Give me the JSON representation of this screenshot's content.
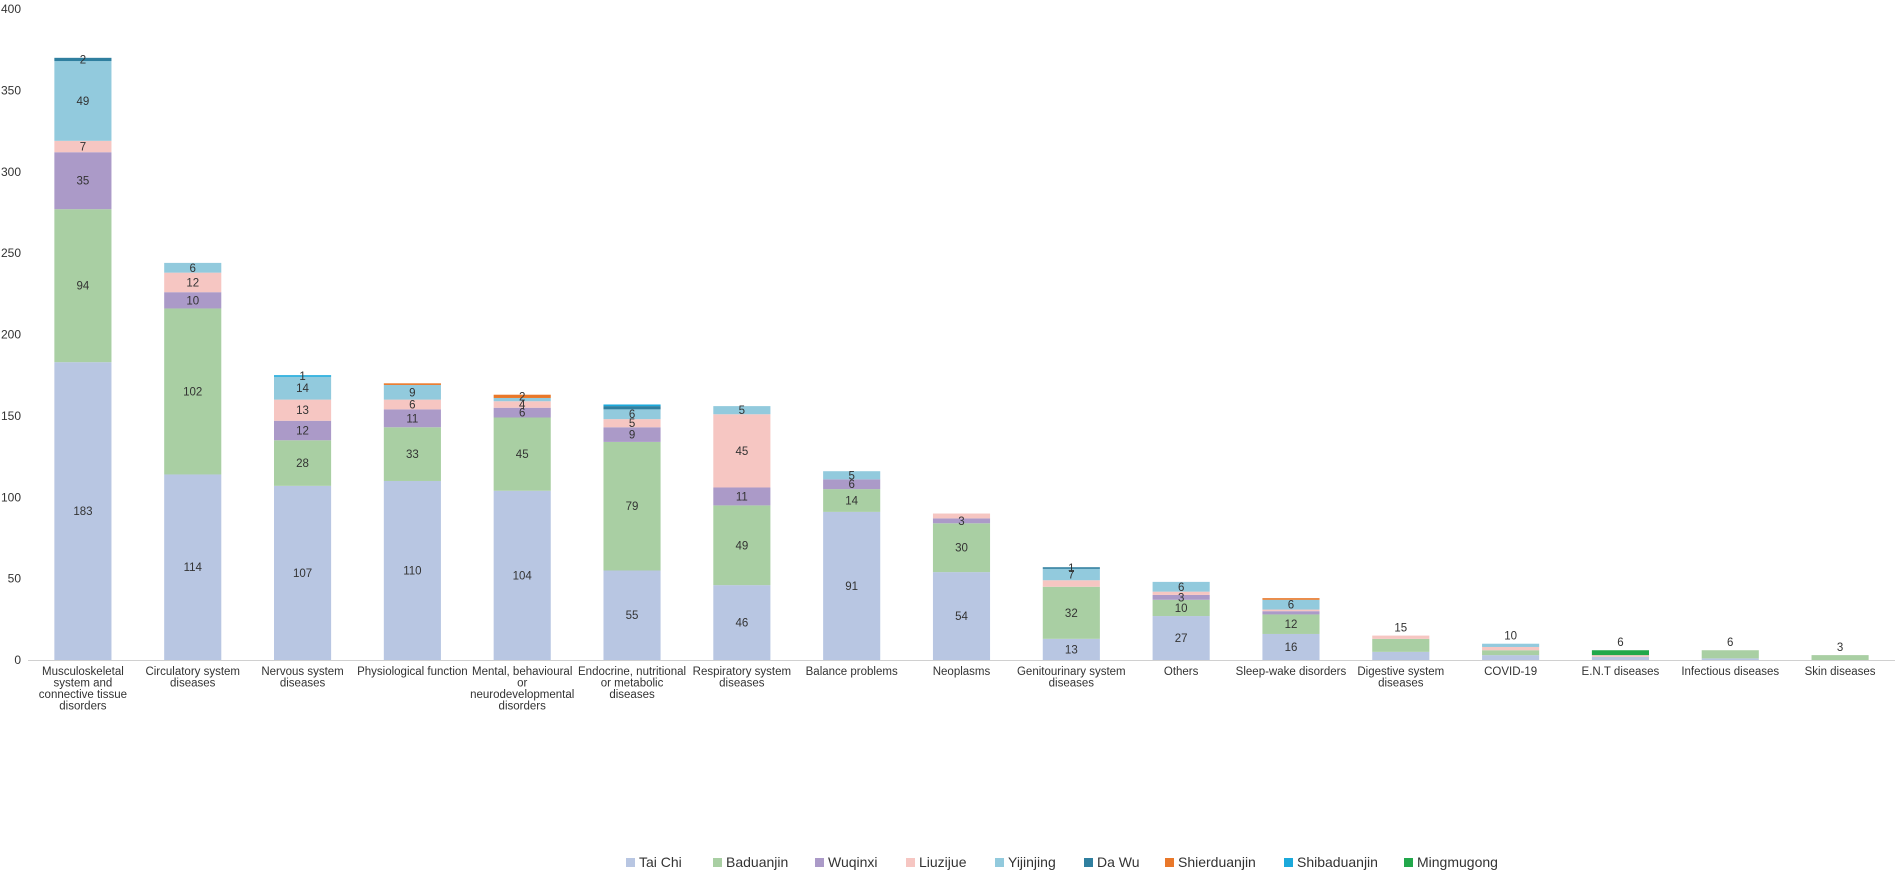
{
  "chart_data": {
    "type": "bar",
    "stacked": true,
    "title": "",
    "xlabel": "",
    "ylabel": "",
    "ylim": [
      0,
      400
    ],
    "yticks": [
      0,
      50,
      100,
      150,
      200,
      250,
      300,
      350,
      400
    ],
    "legend_position": "bottom",
    "categories": [
      "Musculoskeletal system and connective tissue disorders",
      "Circulatory system diseases",
      "Nervous system diseases",
      "Physiological function",
      "Mental, behavioural or neurodevelopmental disorders",
      "Endocrine, nutritional or metabolic diseases",
      "Respiratory system diseases",
      "Balance problems",
      "Neoplasms",
      "Genitourinary system diseases",
      "Others",
      "Sleep-wake disorders",
      "Digestive system diseases",
      "COVID-19",
      "E.N.T diseases",
      "Infectious diseases",
      "Skin diseases"
    ],
    "category_lines": [
      [
        "Musculoskeletal",
        "system and",
        "connective tissue",
        "disorders"
      ],
      [
        "Circulatory system",
        "diseases"
      ],
      [
        "Nervous system",
        "diseases"
      ],
      [
        "Physiological function"
      ],
      [
        "Mental, behavioural",
        "or",
        "neurodevelopmental",
        "disorders"
      ],
      [
        "Endocrine, nutritional",
        "or metabolic",
        "diseases"
      ],
      [
        "Respiratory system",
        "diseases"
      ],
      [
        "Balance problems"
      ],
      [
        "Neoplasms"
      ],
      [
        "Genitourinary system",
        "diseases"
      ],
      [
        "Others"
      ],
      [
        "Sleep-wake disorders"
      ],
      [
        "Digestive system",
        "diseases"
      ],
      [
        "COVID-19"
      ],
      [
        "E.N.T diseases"
      ],
      [
        "Infectious diseases"
      ],
      [
        "Skin diseases"
      ]
    ],
    "series": [
      {
        "name": "Tai Chi",
        "color": "#b8c6e2",
        "values": [
          183,
          114,
          107,
          110,
          104,
          55,
          46,
          91,
          54,
          13,
          27,
          16,
          5,
          3,
          2,
          1,
          0
        ]
      },
      {
        "name": "Baduanjin",
        "color": "#a9cfa3",
        "values": [
          94,
          102,
          28,
          33,
          45,
          79,
          49,
          14,
          30,
          32,
          10,
          12,
          8,
          3,
          0,
          5,
          3
        ]
      },
      {
        "name": "Wuqinxi",
        "color": "#ab9ac8",
        "values": [
          35,
          10,
          12,
          11,
          6,
          9,
          11,
          6,
          3,
          0,
          3,
          2,
          0,
          0,
          0,
          0,
          0
        ]
      },
      {
        "name": "Liuzijue",
        "color": "#f6c6c2",
        "values": [
          7,
          12,
          13,
          6,
          4,
          5,
          45,
          0,
          3,
          4,
          2,
          1,
          2,
          2,
          1,
          0,
          0
        ]
      },
      {
        "name": "Yijinjing",
        "color": "#92cadd",
        "values": [
          49,
          6,
          14,
          9,
          2,
          6,
          5,
          5,
          0,
          7,
          6,
          6,
          0,
          2,
          0,
          0,
          0
        ]
      },
      {
        "name": "Da Wu",
        "color": "#2f7f9f",
        "values": [
          2,
          0,
          0,
          0,
          0,
          2,
          0,
          0,
          0,
          1,
          0,
          0,
          0,
          0,
          0,
          0,
          0
        ]
      },
      {
        "name": "Shierduanjin",
        "color": "#e9782a",
        "values": [
          0,
          0,
          0,
          1,
          2,
          0,
          0,
          0,
          0,
          0,
          0,
          1,
          0,
          0,
          0,
          0,
          0
        ]
      },
      {
        "name": "Shibaduanjin",
        "color": "#1ba9db",
        "values": [
          0,
          0,
          1,
          0,
          0,
          1,
          0,
          0,
          0,
          0,
          0,
          0,
          0,
          0,
          0,
          0,
          0
        ]
      },
      {
        "name": "Mingmugong",
        "color": "#22a84b",
        "values": [
          0,
          0,
          0,
          0,
          0,
          0,
          0,
          0,
          0,
          0,
          0,
          0,
          0,
          0,
          3,
          0,
          0
        ]
      }
    ],
    "labels": [
      [
        [
          "183",
          0
        ],
        [
          "94",
          1
        ],
        [
          "35",
          2
        ],
        [
          "7",
          3
        ],
        [
          "49",
          4
        ],
        [
          "2",
          5
        ]
      ],
      [
        [
          "114",
          0
        ],
        [
          "102",
          1
        ],
        [
          "10",
          2
        ],
        [
          "12",
          3
        ],
        [
          "6",
          4
        ]
      ],
      [
        [
          "107",
          0
        ],
        [
          "28",
          1
        ],
        [
          "12",
          2
        ],
        [
          "13",
          3
        ],
        [
          "14",
          4
        ],
        [
          "1",
          7
        ]
      ],
      [
        [
          "110",
          0
        ],
        [
          "33",
          1
        ],
        [
          "11",
          2
        ],
        [
          "6",
          3
        ],
        [
          "9",
          4
        ]
      ],
      [
        [
          "104",
          0
        ],
        [
          "45",
          1
        ],
        [
          "6",
          2
        ],
        [
          "4",
          3
        ],
        [
          "2",
          6
        ]
      ],
      [
        [
          "55",
          0
        ],
        [
          "79",
          1
        ],
        [
          "9",
          2
        ],
        [
          "5",
          3
        ],
        [
          "6",
          4
        ]
      ],
      [
        [
          "46",
          0
        ],
        [
          "49",
          1
        ],
        [
          "11",
          2
        ],
        [
          "45",
          3
        ],
        [
          "5",
          4
        ]
      ],
      [
        [
          "91",
          0
        ],
        [
          "14",
          1
        ],
        [
          "6",
          2
        ],
        [
          "5",
          4
        ]
      ],
      [
        [
          "54",
          0
        ],
        [
          "30",
          1
        ],
        [
          "3",
          2
        ]
      ],
      [
        [
          "13",
          0
        ],
        [
          "32",
          1
        ],
        [
          "7",
          4
        ],
        [
          "1",
          5
        ]
      ],
      [
        [
          "27",
          0
        ],
        [
          "10",
          1
        ],
        [
          "3",
          2
        ],
        [
          "6",
          4
        ]
      ],
      [
        [
          "16",
          0
        ],
        [
          "12",
          1
        ],
        [
          "6",
          4
        ]
      ],
      [
        [
          "15",
          -1
        ]
      ],
      [
        [
          "10",
          -1
        ]
      ],
      [
        [
          "6",
          -1
        ]
      ],
      [
        [
          "6",
          -1
        ]
      ],
      [
        [
          "3",
          -1
        ]
      ]
    ]
  }
}
